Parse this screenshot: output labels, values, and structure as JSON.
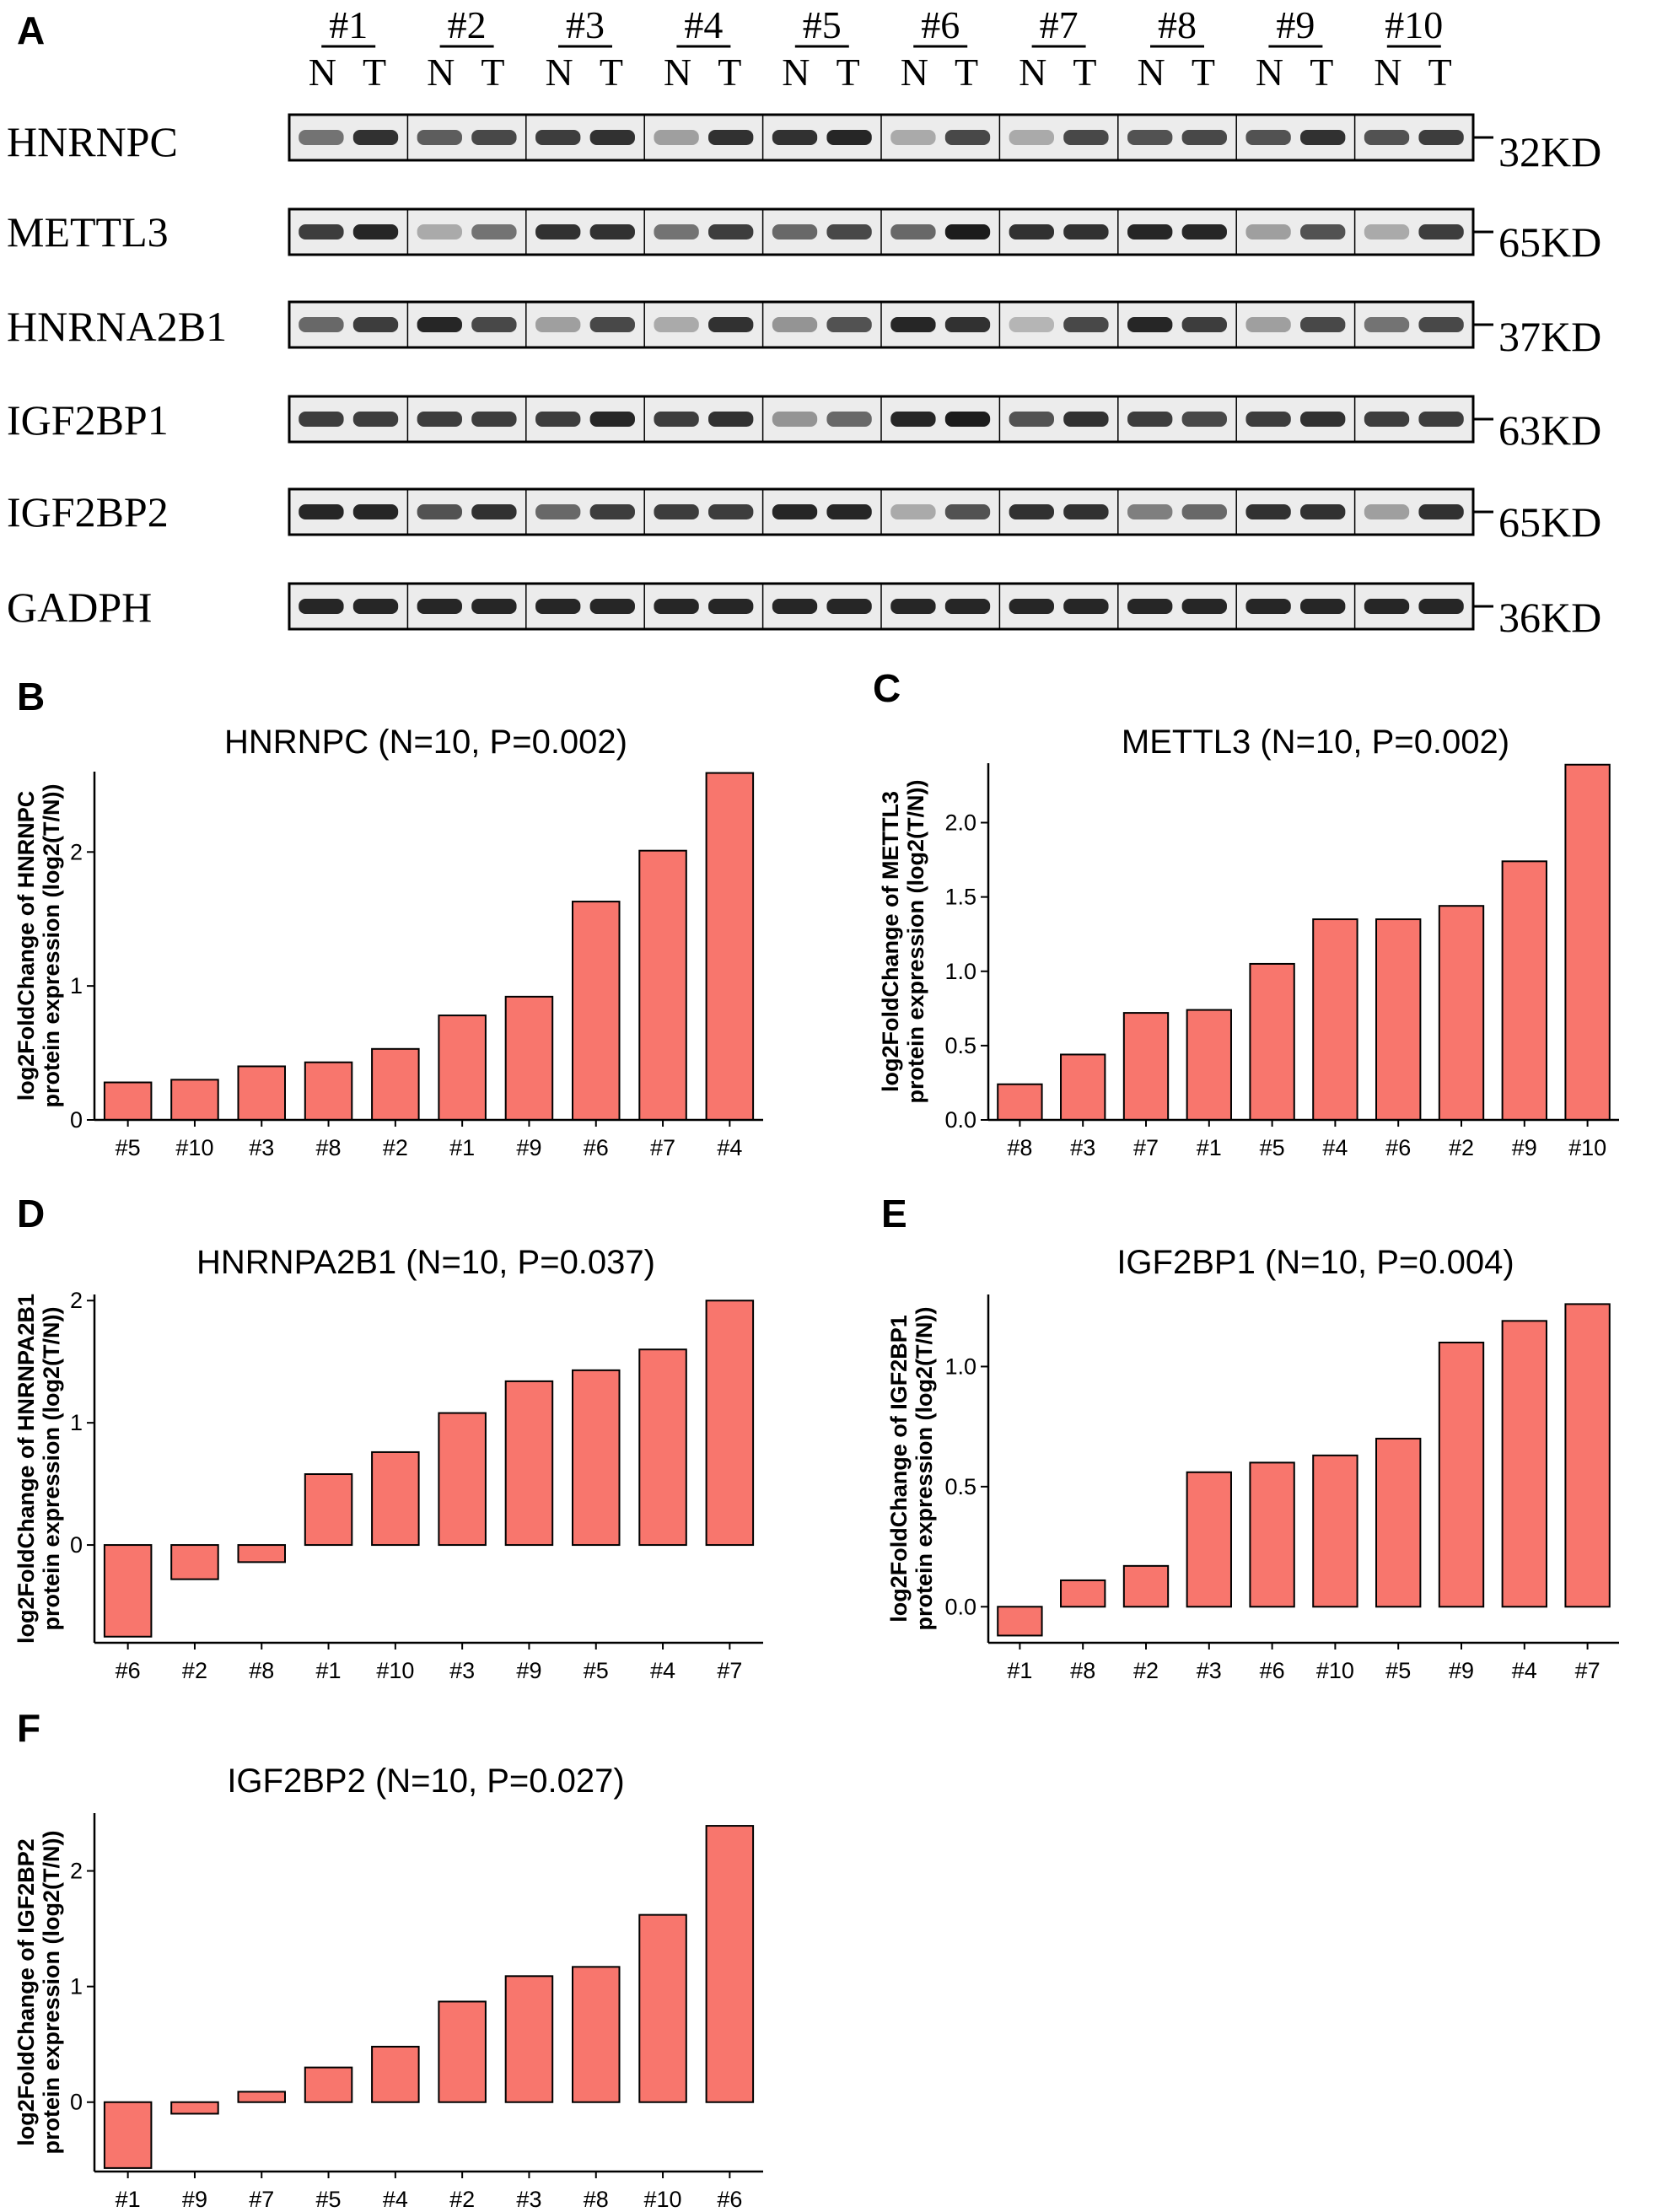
{
  "panel_letters": {
    "a": "A",
    "b": "B",
    "c": "C",
    "d": "D",
    "e": "E",
    "f": "F"
  },
  "western_blot": {
    "samples": [
      "#1",
      "#2",
      "#3",
      "#4",
      "#5",
      "#6",
      "#7",
      "#8",
      "#9",
      "#10"
    ],
    "lane_labels": [
      "N",
      "T"
    ],
    "proteins": [
      {
        "name": "HNRNPC",
        "marker": "32KD"
      },
      {
        "name": "METTL3",
        "marker": "65KD"
      },
      {
        "name": "HNRNA2B1",
        "marker": "37KD"
      },
      {
        "name": "IGF2BP1",
        "marker": "63KD"
      },
      {
        "name": "IGF2BP2",
        "marker": "65KD"
      },
      {
        "name": "GADPH",
        "marker": "36KD"
      }
    ],
    "band_intensity_N": [
      [
        0.55,
        0.65,
        0.8,
        0.35,
        0.85,
        0.3,
        0.3,
        0.7,
        0.7,
        0.7
      ],
      [
        0.8,
        0.3,
        0.85,
        0.55,
        0.6,
        0.6,
        0.85,
        0.9,
        0.35,
        0.3
      ],
      [
        0.6,
        0.9,
        0.35,
        0.3,
        0.4,
        0.9,
        0.25,
        0.9,
        0.35,
        0.55
      ],
      [
        0.8,
        0.8,
        0.8,
        0.8,
        0.4,
        0.9,
        0.7,
        0.8,
        0.8,
        0.8
      ],
      [
        0.9,
        0.7,
        0.6,
        0.8,
        0.9,
        0.3,
        0.85,
        0.5,
        0.85,
        0.35
      ],
      [
        0.9,
        0.9,
        0.9,
        0.9,
        0.9,
        0.9,
        0.9,
        0.9,
        0.9,
        0.9
      ]
    ],
    "band_intensity_T": [
      [
        0.85,
        0.75,
        0.85,
        0.85,
        0.9,
        0.75,
        0.75,
        0.75,
        0.85,
        0.8
      ],
      [
        0.9,
        0.55,
        0.85,
        0.8,
        0.75,
        0.95,
        0.85,
        0.9,
        0.7,
        0.8
      ],
      [
        0.8,
        0.75,
        0.75,
        0.85,
        0.7,
        0.85,
        0.75,
        0.8,
        0.75,
        0.75
      ],
      [
        0.8,
        0.8,
        0.9,
        0.85,
        0.6,
        0.95,
        0.85,
        0.75,
        0.85,
        0.8
      ],
      [
        0.9,
        0.85,
        0.8,
        0.8,
        0.9,
        0.7,
        0.85,
        0.6,
        0.85,
        0.85
      ],
      [
        0.9,
        0.9,
        0.9,
        0.9,
        0.9,
        0.9,
        0.9,
        0.9,
        0.9,
        0.9
      ]
    ]
  },
  "colors": {
    "bar_fill": "#f8766d",
    "bar_stroke": "#000000",
    "band": "#111111",
    "blot_bg": "#ececec"
  },
  "chart_data": [
    {
      "panel": "B",
      "type": "bar",
      "title": "HNRNPC (N=10, P=0.002)",
      "ylabel": [
        "log2FoldChange of HNRNPC",
        "protein expression (log2(T/N))"
      ],
      "categories": [
        "#5",
        "#10",
        "#3",
        "#8",
        "#2",
        "#1",
        "#9",
        "#6",
        "#7",
        "#4"
      ],
      "values": [
        0.28,
        0.3,
        0.4,
        0.43,
        0.53,
        0.78,
        0.92,
        1.63,
        2.01,
        2.59
      ],
      "ylim": [
        0,
        2.6
      ],
      "yticks": [
        0,
        1,
        2
      ],
      "ytick_labels": [
        "0",
        "1",
        "2"
      ],
      "grid": false
    },
    {
      "panel": "C",
      "type": "bar",
      "title": "METTL3 (N=10, P=0.002)",
      "ylabel": [
        "log2FoldChange of METTL3",
        "protein expression (log2(T/N))"
      ],
      "categories": [
        "#8",
        "#3",
        "#7",
        "#1",
        "#5",
        "#4",
        "#6",
        "#2",
        "#9",
        "#10"
      ],
      "values": [
        0.24,
        0.44,
        0.72,
        0.74,
        1.05,
        1.35,
        1.35,
        1.44,
        1.74,
        2.39
      ],
      "ylim": [
        0,
        2.4
      ],
      "yticks": [
        0,
        0.5,
        1,
        1.5,
        2
      ],
      "ytick_labels": [
        "0.0",
        "0.5",
        "1.0",
        "1.5",
        "2.0"
      ],
      "grid": false
    },
    {
      "panel": "D",
      "type": "bar",
      "title": "HNRNPA2B1 (N=10, P=0.037)",
      "ylabel": [
        "log2FoldChange of HNRNPA2B1",
        "protein expression (log2(T/N))"
      ],
      "categories": [
        "#6",
        "#2",
        "#8",
        "#1",
        "#10",
        "#3",
        "#9",
        "#5",
        "#4",
        "#7"
      ],
      "values": [
        -0.75,
        -0.28,
        -0.14,
        0.58,
        0.76,
        1.08,
        1.34,
        1.43,
        1.6,
        2.0
      ],
      "ylim": [
        -0.8,
        2.05
      ],
      "yticks": [
        0,
        1,
        2
      ],
      "ytick_labels": [
        "0",
        "1",
        "2"
      ],
      "grid": false
    },
    {
      "panel": "E",
      "type": "bar",
      "title": "IGF2BP1 (N=10, P=0.004)",
      "ylabel": [
        "log2FoldChange of IGF2BP1",
        "protein expression (log2(T/N))"
      ],
      "categories": [
        "#1",
        "#8",
        "#2",
        "#3",
        "#6",
        "#10",
        "#5",
        "#9",
        "#4",
        "#7"
      ],
      "values": [
        -0.12,
        0.11,
        0.17,
        0.56,
        0.6,
        0.63,
        0.7,
        1.1,
        1.19,
        1.26
      ],
      "ylim": [
        -0.15,
        1.3
      ],
      "yticks": [
        0,
        0.5,
        1
      ],
      "ytick_labels": [
        "0.0",
        "0.5",
        "1.0"
      ],
      "grid": false
    },
    {
      "panel": "F",
      "type": "bar",
      "title": "IGF2BP2 (N=10, P=0.027)",
      "ylabel": [
        "log2FoldChange of IGF2BP2",
        "protein expression (log2(T/N))"
      ],
      "categories": [
        "#1",
        "#9",
        "#7",
        "#5",
        "#4",
        "#2",
        "#3",
        "#8",
        "#10",
        "#6"
      ],
      "values": [
        -0.57,
        -0.1,
        0.09,
        0.3,
        0.48,
        0.87,
        1.09,
        1.17,
        1.62,
        2.39
      ],
      "ylim": [
        -0.6,
        2.5
      ],
      "yticks": [
        0,
        1,
        2
      ],
      "ytick_labels": [
        "0",
        "1",
        "2"
      ],
      "grid": false
    }
  ]
}
